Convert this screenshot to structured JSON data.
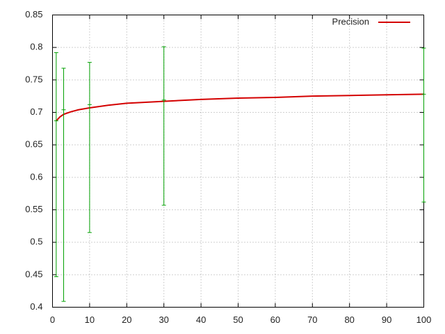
{
  "chart_data": {
    "type": "line",
    "series": [
      {
        "name": "Precision",
        "color": "#d40000",
        "x": [
          1,
          2,
          3,
          5,
          7,
          10,
          15,
          20,
          30,
          40,
          50,
          60,
          70,
          80,
          90,
          100
        ],
        "values": [
          0.687,
          0.693,
          0.697,
          0.701,
          0.704,
          0.707,
          0.711,
          0.714,
          0.717,
          0.72,
          0.722,
          0.723,
          0.725,
          0.726,
          0.727,
          0.728
        ]
      },
      {
        "color": "#00a000",
        "x": [
          1,
          3,
          10,
          30,
          100
        ],
        "values": [
          0.687,
          0.704,
          0.712,
          0.719,
          0.728
        ],
        "low": [
          0.447,
          0.409,
          0.515,
          0.557,
          0.562
        ],
        "high": [
          0.792,
          0.768,
          0.777,
          0.801,
          0.799
        ]
      }
    ],
    "xlim": [
      0,
      100
    ],
    "xticks": [
      0,
      10,
      20,
      30,
      40,
      50,
      60,
      70,
      80,
      90,
      100
    ],
    "ylim": [
      0.4,
      0.85
    ],
    "yticks": [
      0.4,
      0.45,
      0.5,
      0.55,
      0.6,
      0.65,
      0.7,
      0.75,
      0.8,
      0.85
    ],
    "grid": true,
    "legend": "top-right"
  }
}
